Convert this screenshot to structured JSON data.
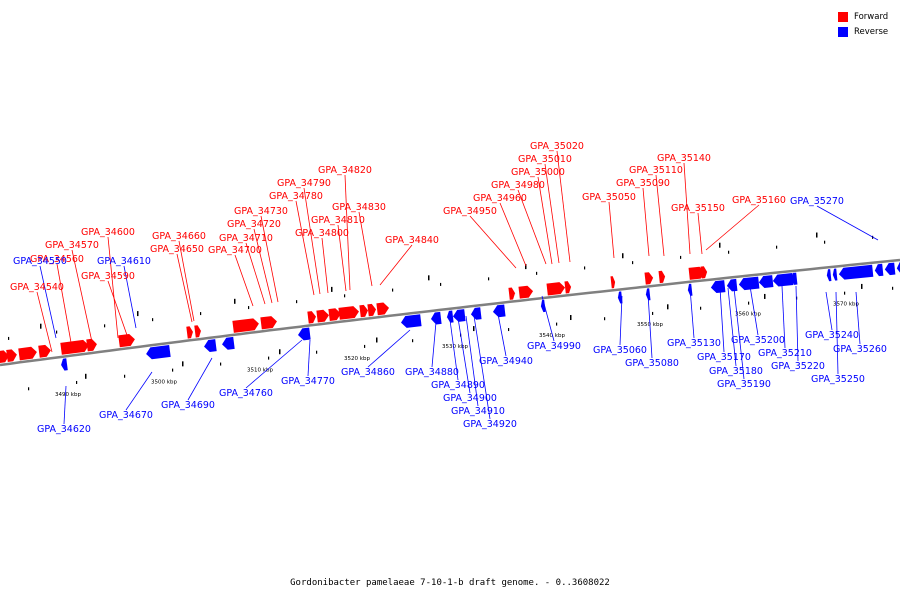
{
  "title": "Gordonibacter pamelaeae 7-10-1-b draft genome. - 0..3608022",
  "legend": [
    {
      "label": "Forward",
      "color": "#ff0000"
    },
    {
      "label": "Reverse",
      "color": "#0000ff"
    }
  ],
  "colors": {
    "forward": "#ff0000",
    "reverse": "#0000ff",
    "backbone": "#808080"
  },
  "scale_labels": [
    "3490 kbp",
    "3500 kbp",
    "3510 kbp",
    "3520 kbp",
    "3530 kbp",
    "3540 kbp",
    "3550 kbp",
    "3560 kbp",
    "3570 kbp"
  ],
  "forward_labels": [
    "GPA_34540",
    "GPA_34560",
    "GPA_34570",
    "GPA_34590",
    "GPA_34600",
    "GPA_34650",
    "GPA_34660",
    "GPA_34700",
    "GPA_34710",
    "GPA_34720",
    "GPA_34730",
    "GPA_34780",
    "GPA_34790",
    "GPA_34800",
    "GPA_34810",
    "GPA_34820",
    "GPA_34830",
    "GPA_34840",
    "GPA_34950",
    "GPA_34960",
    "GPA_34980",
    "GPA_35000",
    "GPA_35010",
    "GPA_35020",
    "GPA_35050",
    "GPA_35090",
    "GPA_35110",
    "GPA_35140",
    "GPA_35150",
    "GPA_35160"
  ],
  "reverse_labels": [
    "GPA_34550",
    "GPA_34610",
    "GPA_34620",
    "GPA_34670",
    "GPA_34690",
    "GPA_34760",
    "GPA_34770",
    "GPA_34860",
    "GPA_34880",
    "GPA_34890",
    "GPA_34900",
    "GPA_34910",
    "GPA_34920",
    "GPA_34940",
    "GPA_34990",
    "GPA_35060",
    "GPA_35080",
    "GPA_35130",
    "GPA_35170",
    "GPA_35180",
    "GPA_35190",
    "GPA_35200",
    "GPA_35210",
    "GPA_35220",
    "GPA_35240",
    "GPA_35250",
    "GPA_35260",
    "GPA_35270"
  ]
}
